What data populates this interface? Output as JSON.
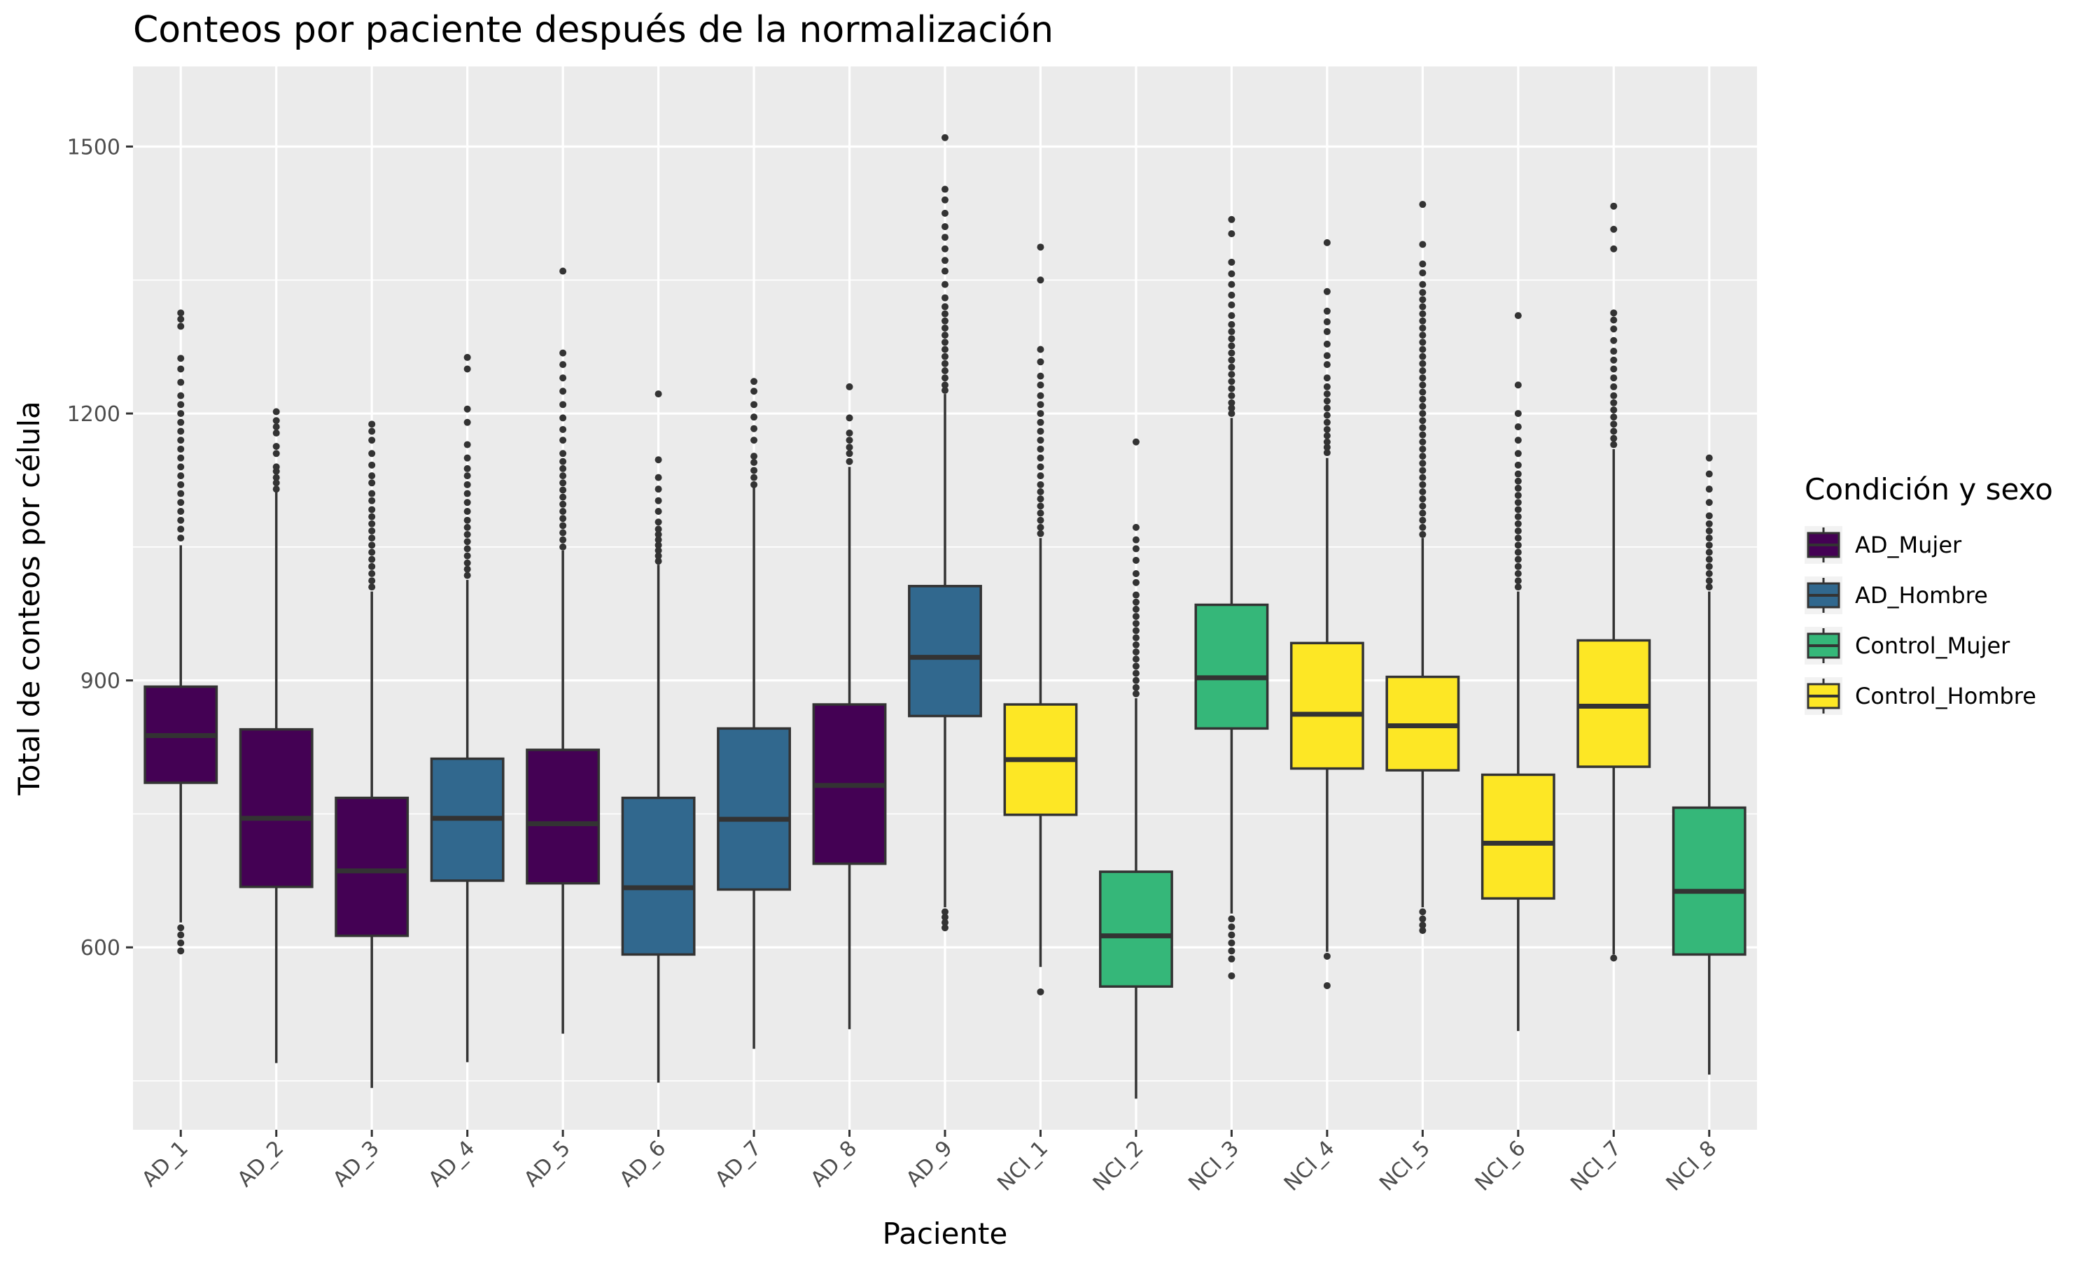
{
  "chart_data": {
    "type": "boxplot",
    "title": "Conteos por paciente después de la normalización",
    "xlabel": "Paciente",
    "ylabel": "Total de conteos por célula",
    "ylim": [
      395,
      1590
    ],
    "yticks": [
      600,
      900,
      1200,
      1500
    ],
    "grid": true,
    "legend": {
      "title": "Condición y sexo",
      "placement": "right",
      "entries": [
        {
          "key": "AD_Mujer",
          "label": "AD_Mujer",
          "color": "#440154"
        },
        {
          "key": "AD_Hombre",
          "label": "AD_Hombre",
          "color": "#31688E"
        },
        {
          "key": "Control_Mujer",
          "label": "Control_Mujer",
          "color": "#35B779"
        },
        {
          "key": "Control_Hombre",
          "label": "Control_Hombre",
          "color": "#FDE725"
        }
      ]
    },
    "categories": [
      "AD_1",
      "AD_2",
      "AD_3",
      "AD_4",
      "AD_5",
      "AD_6",
      "AD_7",
      "AD_8",
      "AD_9",
      "NCI_1",
      "NCI_2",
      "NCI_3",
      "NCI_4",
      "NCI_5",
      "NCI_6",
      "NCI_7",
      "NCI_8"
    ],
    "boxes": [
      {
        "label": "AD_1",
        "group": "AD_Mujer",
        "whisker_low": 628,
        "q1": 785,
        "median": 838,
        "q3": 893,
        "whisker_high": 1052,
        "outliers_high": [
          1060,
          1070,
          1080,
          1090,
          1100,
          1110,
          1120,
          1130,
          1140,
          1150,
          1160,
          1170,
          1180,
          1190,
          1200,
          1210,
          1220,
          1235,
          1250,
          1262,
          1298,
          1306,
          1313
        ],
        "outliers_low": [
          622,
          614,
          605,
          596
        ]
      },
      {
        "label": "AD_2",
        "group": "AD_Mujer",
        "whisker_low": 470,
        "q1": 668,
        "median": 745,
        "q3": 845,
        "whisker_high": 1112,
        "outliers_high": [
          1115,
          1122,
          1128,
          1135,
          1140,
          1155,
          1163,
          1178,
          1185,
          1192,
          1202
        ],
        "outliers_low": []
      },
      {
        "label": "AD_3",
        "group": "AD_Mujer",
        "whisker_low": 442,
        "q1": 613,
        "median": 686,
        "q3": 768,
        "whisker_high": 1000,
        "outliers_high": [
          1005,
          1012,
          1020,
          1028,
          1036,
          1044,
          1052,
          1060,
          1068,
          1076,
          1084,
          1092,
          1102,
          1110,
          1122,
          1130,
          1142,
          1155,
          1170,
          1180,
          1188
        ],
        "outliers_low": []
      },
      {
        "label": "AD_4",
        "group": "AD_Hombre",
        "whisker_low": 471,
        "q1": 675,
        "median": 745,
        "q3": 812,
        "whisker_high": 1013,
        "outliers_high": [
          1018,
          1025,
          1032,
          1040,
          1048,
          1056,
          1064,
          1072,
          1080,
          1090,
          1100,
          1110,
          1120,
          1130,
          1138,
          1150,
          1165,
          1190,
          1205,
          1250,
          1263
        ],
        "outliers_low": []
      },
      {
        "label": "AD_5",
        "group": "AD_Mujer",
        "whisker_low": 503,
        "q1": 672,
        "median": 739,
        "q3": 822,
        "whisker_high": 1046,
        "outliers_high": [
          1050,
          1058,
          1066,
          1074,
          1082,
          1090,
          1098,
          1106,
          1114,
          1122,
          1130,
          1138,
          1146,
          1155,
          1170,
          1182,
          1195,
          1210,
          1225,
          1240,
          1255,
          1268,
          1360
        ],
        "outliers_low": []
      },
      {
        "label": "AD_6",
        "group": "AD_Hombre",
        "whisker_low": 448,
        "q1": 592,
        "median": 667,
        "q3": 768,
        "whisker_high": 1030,
        "outliers_high": [
          1034,
          1040,
          1046,
          1052,
          1058,
          1064,
          1070,
          1078,
          1090,
          1102,
          1115,
          1128,
          1148,
          1222
        ],
        "outliers_low": []
      },
      {
        "label": "AD_7",
        "group": "AD_Hombre",
        "whisker_low": 486,
        "q1": 665,
        "median": 744,
        "q3": 846,
        "whisker_high": 1117,
        "outliers_high": [
          1120,
          1128,
          1136,
          1145,
          1152,
          1170,
          1183,
          1196,
          1210,
          1225,
          1236
        ],
        "outliers_low": []
      },
      {
        "label": "AD_8",
        "group": "AD_Mujer",
        "whisker_low": 508,
        "q1": 694,
        "median": 782,
        "q3": 873,
        "whisker_high": 1140,
        "outliers_high": [
          1146,
          1155,
          1162,
          1170,
          1178,
          1195,
          1230
        ],
        "outliers_low": []
      },
      {
        "label": "AD_9",
        "group": "AD_Hombre",
        "whisker_low": 645,
        "q1": 860,
        "median": 926,
        "q3": 1006,
        "whisker_high": 1222,
        "outliers_high": [
          1226,
          1232,
          1240,
          1248,
          1256,
          1264,
          1272,
          1280,
          1288,
          1296,
          1304,
          1312,
          1320,
          1330,
          1345,
          1360,
          1372,
          1385,
          1398,
          1410,
          1425,
          1440,
          1452,
          1510
        ],
        "outliers_low": [
          640,
          634,
          628,
          622
        ]
      },
      {
        "label": "NCI_1",
        "group": "Control_Hombre",
        "whisker_low": 578,
        "q1": 749,
        "median": 811,
        "q3": 873,
        "whisker_high": 1060,
        "outliers_high": [
          1065,
          1072,
          1080,
          1088,
          1096,
          1104,
          1112,
          1120,
          1130,
          1140,
          1150,
          1160,
          1170,
          1180,
          1190,
          1200,
          1210,
          1220,
          1232,
          1242,
          1258,
          1272,
          1350,
          1387
        ],
        "outliers_low": [
          550
        ]
      },
      {
        "label": "NCI_2",
        "group": "Control_Mujer",
        "whisker_low": 430,
        "q1": 556,
        "median": 613,
        "q3": 685,
        "whisker_high": 880,
        "outliers_high": [
          885,
          892,
          900,
          908,
          916,
          924,
          932,
          940,
          948,
          956,
          964,
          972,
          980,
          988,
          996,
          1010,
          1020,
          1035,
          1048,
          1058,
          1072,
          1168
        ],
        "outliers_low": []
      },
      {
        "label": "NCI_3",
        "group": "Control_Mujer",
        "whisker_low": 638,
        "q1": 846,
        "median": 903,
        "q3": 985,
        "whisker_high": 1195,
        "outliers_high": [
          1200,
          1206,
          1212,
          1220,
          1228,
          1236,
          1244,
          1252,
          1260,
          1268,
          1276,
          1284,
          1292,
          1300,
          1310,
          1322,
          1333,
          1345,
          1357,
          1370,
          1402,
          1418
        ],
        "outliers_low": [
          632,
          623,
          614,
          605,
          596,
          587,
          568
        ]
      },
      {
        "label": "NCI_4",
        "group": "Control_Hombre",
        "whisker_low": 595,
        "q1": 801,
        "median": 862,
        "q3": 942,
        "whisker_high": 1150,
        "outliers_high": [
          1156,
          1162,
          1168,
          1175,
          1182,
          1190,
          1198,
          1206,
          1214,
          1222,
          1230,
          1240,
          1255,
          1265,
          1278,
          1292,
          1303,
          1315,
          1337,
          1392
        ],
        "outliers_low": [
          590,
          557
        ]
      },
      {
        "label": "NCI_5",
        "group": "Control_Hombre",
        "whisker_low": 645,
        "q1": 799,
        "median": 849,
        "q3": 904,
        "whisker_high": 1060,
        "outliers_high": [
          1064,
          1072,
          1080,
          1088,
          1096,
          1104,
          1112,
          1120,
          1128,
          1136,
          1144,
          1152,
          1160,
          1168,
          1176,
          1184,
          1192,
          1200,
          1208,
          1216,
          1224,
          1232,
          1240,
          1248,
          1256,
          1264,
          1272,
          1280,
          1288,
          1296,
          1304,
          1312,
          1320,
          1328,
          1336,
          1345,
          1358,
          1368,
          1390,
          1435
        ],
        "outliers_low": [
          640,
          632,
          625,
          619
        ]
      },
      {
        "label": "NCI_6",
        "group": "Control_Hombre",
        "whisker_low": 506,
        "q1": 655,
        "median": 717,
        "q3": 794,
        "whisker_high": 1000,
        "outliers_high": [
          1005,
          1012,
          1020,
          1028,
          1036,
          1044,
          1052,
          1060,
          1068,
          1076,
          1084,
          1092,
          1100,
          1108,
          1116,
          1124,
          1132,
          1142,
          1155,
          1170,
          1185,
          1200,
          1232,
          1310
        ],
        "outliers_low": []
      },
      {
        "label": "NCI_7",
        "group": "Control_Hombre",
        "whisker_low": 592,
        "q1": 803,
        "median": 871,
        "q3": 945,
        "whisker_high": 1160,
        "outliers_high": [
          1165,
          1172,
          1180,
          1188,
          1196,
          1204,
          1212,
          1220,
          1230,
          1240,
          1250,
          1260,
          1270,
          1282,
          1295,
          1305,
          1313,
          1385,
          1407,
          1433
        ],
        "outliers_low": [
          588
        ]
      },
      {
        "label": "NCI_8",
        "group": "Control_Mujer",
        "whisker_low": 457,
        "q1": 592,
        "median": 663,
        "q3": 757,
        "whisker_high": 1000,
        "outliers_high": [
          1005,
          1012,
          1020,
          1028,
          1036,
          1044,
          1052,
          1060,
          1068,
          1076,
          1085,
          1100,
          1115,
          1132,
          1150
        ],
        "outliers_low": []
      }
    ]
  }
}
